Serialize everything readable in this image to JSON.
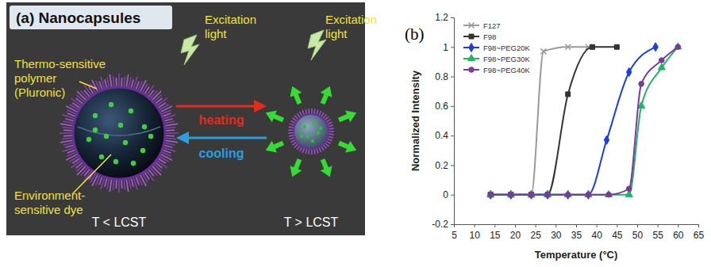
{
  "panel_a": {
    "title": "(a) Nanocapsules",
    "polymer_label": [
      "Thermo-sensitive",
      "polymer",
      "(Pluronic)"
    ],
    "dye_label": [
      "Environment-",
      "sensitive dye"
    ],
    "excitation_left": [
      "Excitation",
      "light"
    ],
    "excitation_right": [
      "Excitation",
      "light"
    ],
    "heating": "heating",
    "cooling": "cooling",
    "state_left": "T < LCST",
    "state_right": "T > LCST"
  },
  "chart_data": {
    "type": "line",
    "title": "(b)",
    "x_label": "Temperature (°C)",
    "y_label": "Normalized Intensity",
    "xlim": [
      5,
      65
    ],
    "xticks": [
      5,
      10,
      15,
      20,
      25,
      30,
      35,
      40,
      45,
      50,
      55,
      60,
      65
    ],
    "ylim": [
      -0.2,
      1.2
    ],
    "yticks": [
      -0.2,
      0,
      0.2,
      0.4,
      0.6,
      0.8,
      1,
      1.2
    ],
    "grid": false,
    "legend": "upper left",
    "series": [
      {
        "name": "F127",
        "color": "#9a9a9a",
        "marker": "x",
        "line_style": "solid",
        "x": [
          14,
          19,
          24,
          27,
          33,
          38
        ],
        "values": [
          0,
          0,
          0,
          0.97,
          1,
          1
        ]
      },
      {
        "name": "F98",
        "color": "#333333",
        "marker": "square",
        "line_style": "solid",
        "x": [
          14,
          19,
          24,
          28,
          33,
          39,
          45
        ],
        "values": [
          0,
          0,
          0,
          0,
          0.68,
          1,
          1
        ]
      },
      {
        "name": "F98~PEG20K",
        "color": "#1a3fe0",
        "marker": "diamond",
        "line_style": "solid",
        "x": [
          14,
          19,
          24,
          28,
          33,
          38,
          42.5,
          48,
          54.5
        ],
        "values": [
          0,
          0,
          0,
          0,
          0,
          0,
          0.37,
          0.83,
          1
        ]
      },
      {
        "name": "F98~PEG30K",
        "color": "#1fb36b",
        "marker": "triangle",
        "line_style": "solid",
        "x": [
          14,
          19,
          24,
          28,
          33,
          38,
          43,
          48,
          51,
          56,
          60
        ],
        "values": [
          0,
          0,
          0,
          0,
          0,
          0,
          0,
          0,
          0.6,
          0.86,
          1
        ]
      },
      {
        "name": "F98~PEG40K",
        "color": "#7a3a9a",
        "marker": "circle",
        "line_style": "solid",
        "x": [
          14,
          19,
          24,
          28,
          33,
          38,
          43,
          48,
          51,
          56,
          60
        ],
        "values": [
          0,
          0,
          0,
          0,
          0,
          0,
          0,
          0.04,
          0.75,
          0.91,
          1
        ]
      }
    ]
  }
}
